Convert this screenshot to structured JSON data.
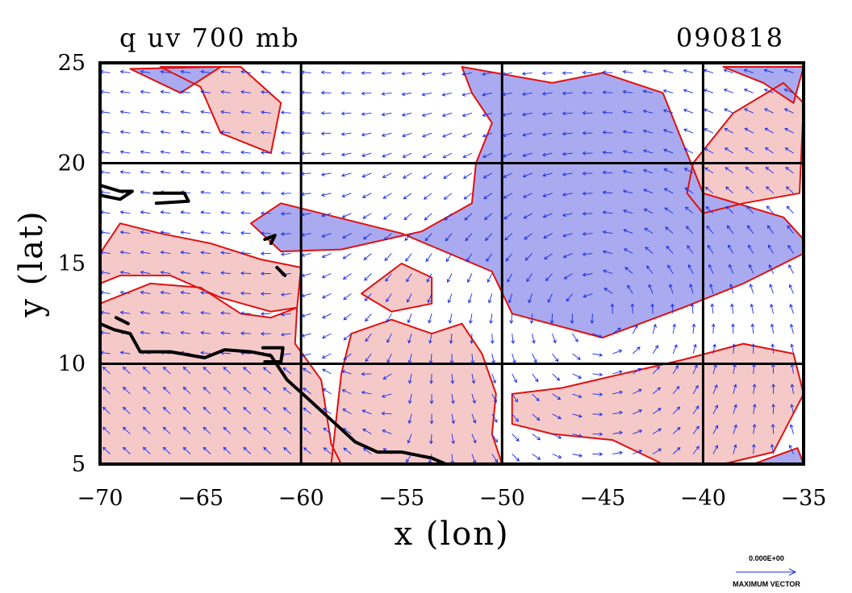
{
  "chart_data": {
    "type": "vector-contour-map",
    "title": "q uv 700 mb",
    "date_label": "090818",
    "xlabel": "x (lon)",
    "ylabel": "y (lat)",
    "xlim": [
      -70,
      -35
    ],
    "ylim": [
      5,
      25
    ],
    "xticks": [
      "−70",
      "−65",
      "−60",
      "−55",
      "−50",
      "−45",
      "−40",
      "−35"
    ],
    "yticks": [
      "5",
      "10",
      "15",
      "20",
      "25"
    ],
    "grid_lon": [
      -60,
      -50,
      -40
    ],
    "grid_lat": [
      10,
      20
    ],
    "vector_legend": {
      "value": "0.000E+00",
      "label": "MAXIMUM VECTOR"
    },
    "colors": {
      "moist_fill": "#f6c9c9",
      "dry_fill": "#aaaaf0",
      "contour": "#e01010",
      "vector": "#1a2ee0",
      "coast": "#000000",
      "grid": "#000000"
    },
    "moist_regions": [
      {
        "name": "caribbean-west",
        "lonlat": [
          [
            -70,
            5
          ],
          [
            -70,
            13
          ],
          [
            -67.5,
            14
          ],
          [
            -65,
            13.8
          ],
          [
            -63,
            12.5
          ],
          [
            -61.5,
            12.3
          ],
          [
            -60.2,
            12.8
          ],
          [
            -60.3,
            11
          ],
          [
            -59,
            9.2
          ],
          [
            -58.5,
            6
          ],
          [
            -58,
            5
          ]
        ]
      },
      {
        "name": "west-upper-band",
        "lonlat": [
          [
            -70,
            15.5
          ],
          [
            -69,
            17
          ],
          [
            -67,
            16.5
          ],
          [
            -64.5,
            16
          ],
          [
            -62,
            15.2
          ],
          [
            -60,
            14.8
          ],
          [
            -60.2,
            12.8
          ],
          [
            -61.5,
            12.6
          ],
          [
            -64,
            13.3
          ],
          [
            -66.5,
            14.4
          ],
          [
            -69,
            14.4
          ],
          [
            -70,
            14
          ]
        ]
      },
      {
        "name": "central-south",
        "lonlat": [
          [
            -58.5,
            5
          ],
          [
            -58,
            9.5
          ],
          [
            -57.5,
            11.5
          ],
          [
            -55.5,
            12.2
          ],
          [
            -53.5,
            11.5
          ],
          [
            -52,
            12
          ],
          [
            -51,
            10.5
          ],
          [
            -50.3,
            8.5
          ],
          [
            -50.5,
            6.5
          ],
          [
            -50,
            5
          ]
        ]
      },
      {
        "name": "central-blob",
        "lonlat": [
          [
            -57,
            13.5
          ],
          [
            -55,
            15
          ],
          [
            -53.5,
            14.3
          ],
          [
            -53.5,
            13
          ],
          [
            -55.5,
            12.6
          ]
        ]
      },
      {
        "name": "east-south",
        "lonlat": [
          [
            -49.5,
            8.5
          ],
          [
            -47,
            8.8
          ],
          [
            -44,
            9.5
          ],
          [
            -41,
            10.2
          ],
          [
            -38,
            11
          ],
          [
            -35.5,
            10.5
          ],
          [
            -35,
            8.5
          ],
          [
            -36.5,
            5.6
          ],
          [
            -39,
            5
          ],
          [
            -42,
            5
          ],
          [
            -44.5,
            6.2
          ],
          [
            -47.5,
            6.5
          ],
          [
            -49.5,
            7
          ]
        ]
      },
      {
        "name": "east-upper",
        "lonlat": [
          [
            -40,
            17.5
          ],
          [
            -38,
            18
          ],
          [
            -35.2,
            18.5
          ],
          [
            -35,
            23
          ],
          [
            -36,
            24
          ],
          [
            -38.5,
            22.5
          ],
          [
            -40.5,
            20
          ],
          [
            -40.8,
            18.5
          ]
        ]
      },
      {
        "name": "northwest-strip",
        "lonlat": [
          [
            -67,
            24.8
          ],
          [
            -65,
            23.8
          ],
          [
            -64,
            21.5
          ],
          [
            -61.5,
            20.5
          ],
          [
            -61,
            23
          ],
          [
            -63,
            24.8
          ]
        ]
      }
    ],
    "dry_regions": [
      {
        "name": "central-east-dry",
        "lonlat": [
          [
            -52,
            24.8
          ],
          [
            -47.5,
            24
          ],
          [
            -45,
            24.5
          ],
          [
            -42,
            23.5
          ],
          [
            -41,
            21
          ],
          [
            -40,
            18.5
          ],
          [
            -36,
            17.3
          ],
          [
            -35,
            16.2
          ],
          [
            -35,
            15.5
          ],
          [
            -38,
            14
          ],
          [
            -41,
            12.8
          ],
          [
            -45,
            11.3
          ],
          [
            -49.5,
            12.5
          ],
          [
            -50.5,
            14.6
          ],
          [
            -55,
            16.5
          ],
          [
            -59,
            17.5
          ],
          [
            -61,
            18
          ],
          [
            -62.5,
            17
          ],
          [
            -61,
            15.6
          ],
          [
            -58,
            15.7
          ],
          [
            -54,
            16.6
          ],
          [
            -51.5,
            18
          ],
          [
            -51.3,
            20
          ],
          [
            -50.5,
            22
          ],
          [
            -51.5,
            23.5
          ]
        ]
      },
      {
        "name": "northwest-dry",
        "lonlat": [
          [
            -68.5,
            24.7
          ],
          [
            -66,
            23.5
          ],
          [
            -64,
            24.8
          ]
        ]
      },
      {
        "name": "northeast-dry",
        "lonlat": [
          [
            -39,
            24.8
          ],
          [
            -37,
            24
          ],
          [
            -35.5,
            23
          ],
          [
            -35,
            24.8
          ]
        ]
      },
      {
        "name": "southeast-dry",
        "lonlat": [
          [
            -37.5,
            5
          ],
          [
            -35.3,
            5.8
          ],
          [
            -35,
            5
          ]
        ]
      }
    ],
    "coastlines": [
      {
        "name": "south-america-coast",
        "lonlat": [
          [
            -70,
            12
          ],
          [
            -69.3,
            11.7
          ],
          [
            -68.5,
            11.5
          ],
          [
            -68,
            10.6
          ],
          [
            -66.5,
            10.6
          ],
          [
            -64.8,
            10.3
          ],
          [
            -63.8,
            10.7
          ],
          [
            -62.5,
            10.6
          ],
          [
            -61.5,
            10.4
          ],
          [
            -60.7,
            9.2
          ],
          [
            -59.7,
            8.3
          ],
          [
            -58.5,
            7.2
          ],
          [
            -57.3,
            6.1
          ],
          [
            -56.2,
            5.6
          ],
          [
            -55,
            5.6
          ],
          [
            -53.5,
            5.3
          ],
          [
            -52.8,
            5
          ]
        ]
      },
      {
        "name": "puerto-rico",
        "lonlat": [
          [
            -67.3,
            18.5
          ],
          [
            -65.8,
            18.5
          ],
          [
            -65.6,
            18.1
          ],
          [
            -67.2,
            18
          ]
        ]
      },
      {
        "name": "hispaniola-tip",
        "lonlat": [
          [
            -70,
            18.9
          ],
          [
            -69,
            18.6
          ],
          [
            -68.4,
            18.6
          ],
          [
            -69,
            18.2
          ],
          [
            -70,
            18.4
          ]
        ]
      },
      {
        "name": "trinidad",
        "lonlat": [
          [
            -61.9,
            10.8
          ],
          [
            -60.9,
            10.8
          ],
          [
            -61,
            10.1
          ],
          [
            -61.8,
            10.1
          ]
        ]
      },
      {
        "name": "guadeloupe",
        "lonlat": [
          [
            -61.8,
            16.2
          ],
          [
            -61.3,
            16.4
          ],
          [
            -61.5,
            16
          ]
        ]
      },
      {
        "name": "martinique",
        "lonlat": [
          [
            -61.2,
            14.8
          ],
          [
            -60.8,
            14.4
          ]
        ]
      },
      {
        "name": "curacao",
        "lonlat": [
          [
            -69.2,
            12.3
          ],
          [
            -68.6,
            12.0
          ]
        ]
      }
    ],
    "vector_grid": {
      "lon_step": 1,
      "lat_step": 1
    }
  }
}
